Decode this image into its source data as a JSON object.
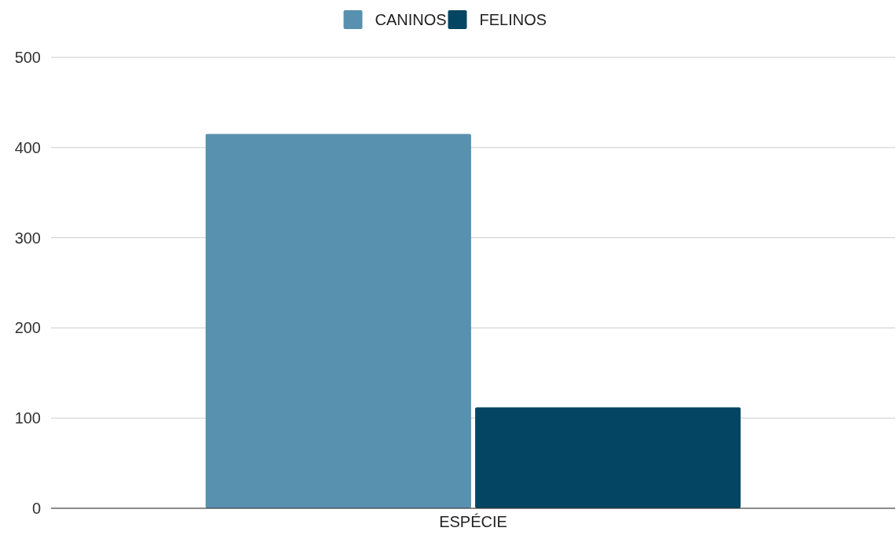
{
  "chart_data": {
    "type": "bar",
    "categories": [
      "ESPÉCIE"
    ],
    "series": [
      {
        "name": "CANINOS",
        "color": "#5891af",
        "values": [
          415
        ]
      },
      {
        "name": "FELINOS",
        "color": "#034562",
        "values": [
          112
        ]
      }
    ],
    "ylim": [
      0,
      500
    ],
    "yticks": [
      0,
      100,
      200,
      300,
      400,
      500
    ],
    "grid": "y",
    "legend": "top"
  }
}
